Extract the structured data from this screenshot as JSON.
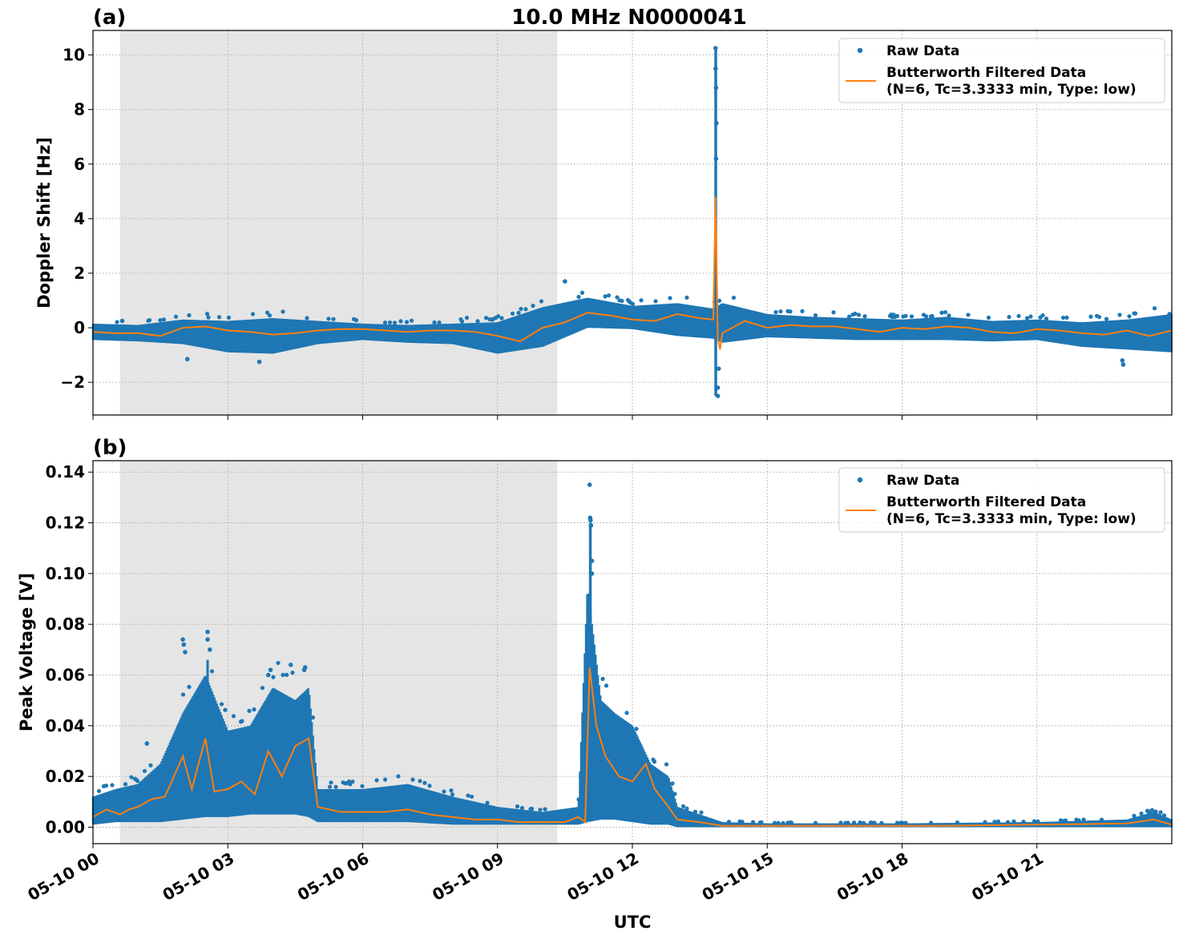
{
  "figure": {
    "title": "10.0 MHz N0000041",
    "xlabel": "UTC",
    "x_tick_labels": [
      "05-10 00",
      "05-10 03",
      "05-10 06",
      "05-10 09",
      "05-10 12",
      "05-10 15",
      "05-10 18",
      "05-10 21"
    ]
  },
  "colors": {
    "raw": "#1f77b4",
    "filtered": "#ff7f0e",
    "night_shade": "#e5e5e5",
    "grid": "#b0b0b0"
  },
  "chart_data": [
    {
      "panel_label": "(a)",
      "type": "scatter",
      "ylabel": "Doppler Shift [Hz]",
      "y_ticks": [
        -2,
        0,
        2,
        4,
        6,
        8,
        10
      ],
      "y_tick_labels": [
        "−2",
        "0",
        "2",
        "4",
        "6",
        "8",
        "10"
      ],
      "ylim": [
        -3.2,
        10.9
      ],
      "xlim_hours": [
        0,
        24
      ],
      "shaded_interval_hours": [
        0.6,
        10.33
      ],
      "grid": true,
      "legend_position": "upper right",
      "legend": {
        "raw_label": "Raw Data",
        "filtered_label_line1": "Butterworth Filtered Data",
        "filtered_label_line2": "(N=6, Tc=3.3333 min, Type: low)"
      },
      "filtered_series": {
        "x_hours": [
          0,
          0.5,
          1.0,
          1.5,
          2.0,
          2.5,
          3.0,
          3.5,
          4.0,
          4.5,
          5.0,
          5.5,
          6.0,
          6.5,
          7.0,
          7.5,
          8.0,
          8.5,
          9.0,
          9.5,
          10.0,
          10.5,
          11.0,
          11.5,
          12.0,
          12.5,
          13.0,
          13.5,
          13.8,
          13.85,
          13.9,
          13.95,
          14.0,
          14.5,
          15.0,
          15.5,
          16.0,
          16.5,
          17.0,
          17.5,
          18.0,
          18.5,
          19.0,
          19.5,
          20.0,
          20.5,
          21.0,
          21.5,
          22.0,
          22.5,
          23.0,
          23.5,
          24.0
        ],
        "y": [
          -0.15,
          -0.2,
          -0.2,
          -0.3,
          0.0,
          0.05,
          -0.1,
          -0.15,
          -0.25,
          -0.2,
          -0.1,
          -0.05,
          -0.05,
          -0.1,
          -0.15,
          -0.1,
          -0.1,
          -0.15,
          -0.3,
          -0.5,
          0.0,
          0.2,
          0.55,
          0.45,
          0.3,
          0.25,
          0.5,
          0.35,
          0.3,
          4.8,
          -0.4,
          -0.8,
          -0.2,
          0.25,
          0.0,
          0.1,
          0.05,
          0.05,
          -0.05,
          -0.15,
          0.0,
          -0.05,
          0.05,
          0.0,
          -0.15,
          -0.2,
          -0.05,
          -0.1,
          -0.2,
          -0.25,
          -0.1,
          -0.3,
          -0.1
        ]
      },
      "raw_band": {
        "x_hours": [
          0,
          1,
          2,
          3,
          4,
          5,
          6,
          7,
          8,
          9,
          10,
          11,
          12,
          13,
          13.8,
          14,
          15,
          16,
          17,
          18,
          19,
          20,
          21,
          22,
          23,
          24
        ],
        "upper": [
          0.15,
          0.1,
          0.3,
          0.25,
          0.35,
          0.25,
          0.15,
          0.1,
          0.15,
          0.2,
          0.75,
          1.1,
          0.8,
          0.9,
          0.7,
          0.9,
          0.5,
          0.4,
          0.35,
          0.3,
          0.4,
          0.25,
          0.3,
          0.2,
          0.3,
          0.5
        ],
        "lower": [
          -0.45,
          -0.5,
          -0.6,
          -0.9,
          -0.95,
          -0.6,
          -0.45,
          -0.55,
          -0.6,
          -0.95,
          -0.7,
          0.0,
          -0.05,
          -0.3,
          -0.4,
          -0.55,
          -0.35,
          -0.4,
          -0.45,
          -0.45,
          -0.45,
          -0.5,
          -0.45,
          -0.7,
          -0.8,
          -0.9
        ]
      },
      "raw_outliers": {
        "x_hours": [
          0.65,
          2.1,
          3.7,
          10.5,
          13.85,
          13.85,
          13.86,
          13.87,
          13.86,
          13.9,
          13.9,
          13.92,
          22.9,
          22.92,
          23.95
        ],
        "y": [
          0.25,
          -1.15,
          -1.25,
          1.7,
          10.25,
          9.5,
          8.8,
          7.5,
          6.2,
          -2.5,
          -2.2,
          -1.5,
          -1.2,
          -1.35,
          0.5
        ]
      }
    },
    {
      "panel_label": "(b)",
      "type": "scatter",
      "ylabel": "Peak Voltage [V]",
      "y_ticks": [
        0.0,
        0.02,
        0.04,
        0.06,
        0.08,
        0.1,
        0.12,
        0.14
      ],
      "y_tick_labels": [
        "0.00",
        "0.02",
        "0.04",
        "0.06",
        "0.08",
        "0.10",
        "0.12",
        "0.14"
      ],
      "ylim": [
        -0.0065,
        0.1445
      ],
      "xlim_hours": [
        0,
        24
      ],
      "shaded_interval_hours": [
        0.6,
        10.33
      ],
      "grid": true,
      "legend_position": "upper right",
      "legend": {
        "raw_label": "Raw Data",
        "filtered_label_line1": "Butterworth Filtered Data",
        "filtered_label_line2": "(N=6, Tc=3.3333 min, Type: low)"
      },
      "filtered_series": {
        "x_hours": [
          0,
          0.3,
          0.6,
          0.8,
          1.0,
          1.3,
          1.6,
          2.0,
          2.2,
          2.5,
          2.7,
          3.0,
          3.3,
          3.6,
          3.9,
          4.2,
          4.5,
          4.8,
          5.0,
          5.5,
          6.0,
          6.5,
          7.0,
          7.5,
          8.0,
          8.5,
          9.0,
          9.5,
          10.0,
          10.5,
          10.8,
          10.95,
          11.05,
          11.2,
          11.4,
          11.7,
          12.0,
          12.3,
          12.5,
          12.8,
          13.0,
          13.5,
          14.0,
          15.0,
          16.0,
          17.0,
          18.0,
          19.0,
          20.0,
          21.0,
          22.0,
          23.0,
          23.6,
          24.0
        ],
        "y": [
          0.004,
          0.007,
          0.005,
          0.007,
          0.008,
          0.011,
          0.012,
          0.028,
          0.015,
          0.035,
          0.014,
          0.015,
          0.018,
          0.013,
          0.03,
          0.02,
          0.032,
          0.035,
          0.008,
          0.006,
          0.006,
          0.006,
          0.007,
          0.005,
          0.004,
          0.003,
          0.003,
          0.002,
          0.002,
          0.002,
          0.004,
          0.002,
          0.063,
          0.04,
          0.028,
          0.02,
          0.018,
          0.025,
          0.015,
          0.008,
          0.003,
          0.002,
          0.0005,
          0.0005,
          0.0005,
          0.0005,
          0.0005,
          0.0005,
          0.0008,
          0.001,
          0.0012,
          0.0015,
          0.003,
          0.001
        ]
      },
      "raw_band": {
        "x_hours": [
          0,
          0.5,
          1,
          1.5,
          2,
          2.5,
          3,
          3.5,
          4,
          4.5,
          4.8,
          5,
          6,
          7,
          8,
          9,
          10,
          10.8,
          11,
          11.3,
          11.6,
          12,
          12.4,
          12.8,
          13,
          13.5,
          14,
          15,
          18,
          21,
          23,
          23.6,
          24
        ],
        "upper": [
          0.012,
          0.015,
          0.017,
          0.025,
          0.045,
          0.06,
          0.038,
          0.04,
          0.055,
          0.05,
          0.055,
          0.015,
          0.015,
          0.017,
          0.012,
          0.008,
          0.006,
          0.008,
          0.095,
          0.05,
          0.045,
          0.04,
          0.025,
          0.02,
          0.008,
          0.005,
          0.002,
          0.0015,
          0.0015,
          0.002,
          0.003,
          0.006,
          0.003
        ],
        "lower": [
          0.001,
          0.002,
          0.002,
          0.002,
          0.003,
          0.004,
          0.004,
          0.005,
          0.005,
          0.005,
          0.004,
          0.002,
          0.002,
          0.002,
          0.001,
          0.001,
          0.001,
          0.001,
          0.002,
          0.003,
          0.003,
          0.002,
          0.001,
          0.001,
          0.0,
          0.0,
          0.0,
          0.0,
          0.0,
          0.0,
          0.0,
          0.0,
          0.0
        ],
        "shape": "band of raw points spanning upper/lower envelopes"
      },
      "raw_outliers": {
        "x_hours": [
          1.2,
          2.0,
          2.02,
          2.05,
          2.55,
          2.55,
          2.6,
          3.9,
          3.95,
          4.4,
          4.7,
          4.72,
          11.05,
          11.06,
          11.07,
          11.08,
          11.1,
          11.1
        ],
        "y": [
          0.033,
          0.074,
          0.072,
          0.069,
          0.077,
          0.074,
          0.07,
          0.06,
          0.062,
          0.064,
          0.062,
          0.063,
          0.135,
          0.122,
          0.121,
          0.119,
          0.105,
          0.1
        ]
      }
    }
  ]
}
